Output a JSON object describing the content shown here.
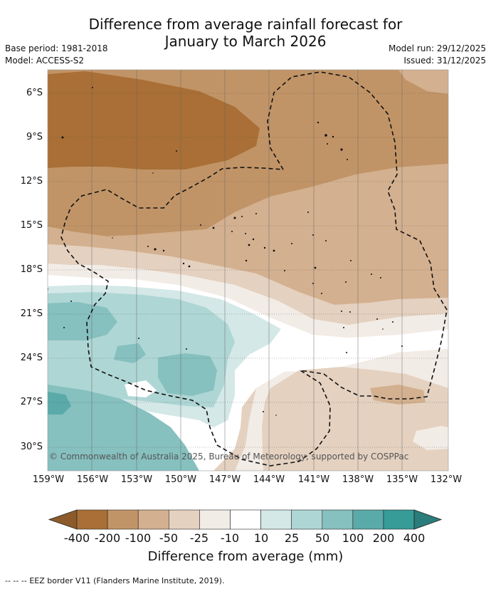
{
  "title": {
    "line1": "Difference from average rainfall forecast for",
    "line2": "January to March 2026"
  },
  "meta": {
    "base_period": "Base period: 1981-2018",
    "model": "Model: ACCESS-S2",
    "model_run": "Model run: 29/12/2025",
    "issued": "Issued: 31/12/2025"
  },
  "latitudes": [
    "6°S",
    "9°S",
    "12°S",
    "15°S",
    "18°S",
    "21°S",
    "24°S",
    "27°S",
    "30°S"
  ],
  "longitudes": [
    "159°W",
    "156°W",
    "153°W",
    "150°W",
    "147°W",
    "144°W",
    "141°W",
    "138°W",
    "135°W",
    "132°W"
  ],
  "copyright": "© Commonwealth of Australia 2025, Bureau of Meteorology, supported by COSPPac",
  "colorbar": {
    "ticks": [
      "-400",
      "-200",
      "-100",
      "-50",
      "-25",
      "-10",
      "10",
      "25",
      "50",
      "100",
      "200",
      "400"
    ],
    "colors": [
      "#a96f36",
      "#c19467",
      "#d3b08f",
      "#e4d1c0",
      "#f2ece6",
      "#ffffff",
      "#d3e8e7",
      "#aed6d4",
      "#86c0bf",
      "#5aaaa9",
      "#379b98"
    ],
    "low_arrow_color": "#8c5a2b",
    "high_arrow_color": "#2a7d7a",
    "label": "Difference from average (mm)"
  },
  "legend": {
    "eez_line": "--  --  --",
    "eez_text": "EEZ border V11 (Flanders Marine Institute, 2019)."
  }
}
